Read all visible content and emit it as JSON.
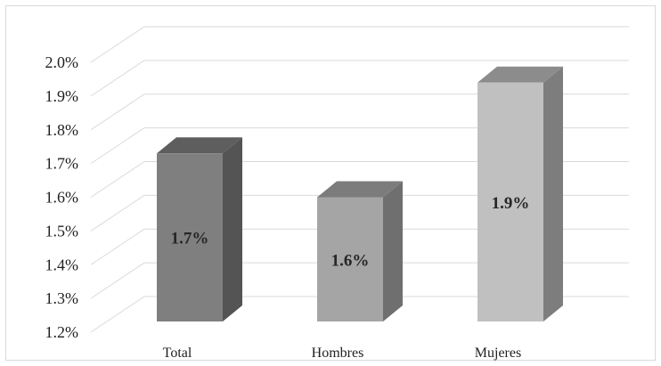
{
  "chart_data": {
    "type": "bar",
    "style": "3d-column",
    "title": "",
    "xlabel": "",
    "ylabel": "",
    "categories": [
      "Total",
      "Hombres",
      "Mujeres"
    ],
    "values": [
      1.73,
      1.6,
      1.94
    ],
    "data_labels": [
      "1.7%",
      "1.6%",
      "1.9%"
    ],
    "ylim": [
      1.2,
      2.0
    ],
    "yticks": [
      1.2,
      1.3,
      1.4,
      1.5,
      1.6,
      1.7,
      1.8,
      1.9,
      2.0
    ],
    "ytick_labels": [
      "1.2%",
      "1.3%",
      "1.4%",
      "1.5%",
      "1.6%",
      "1.7%",
      "1.8%",
      "1.9%",
      "2.0%"
    ],
    "grid": true,
    "legend": "none",
    "colors": {
      "Total": {
        "front": "#7f7f7f",
        "side": "#545454",
        "top": "#5e5e5e"
      },
      "Hombres": {
        "front": "#a5a5a5",
        "side": "#6f6f6f",
        "top": "#7c7c7c"
      },
      "Mujeres": {
        "front": "#c0c0c0",
        "side": "#7d7d7d",
        "top": "#8c8c8c"
      }
    }
  }
}
